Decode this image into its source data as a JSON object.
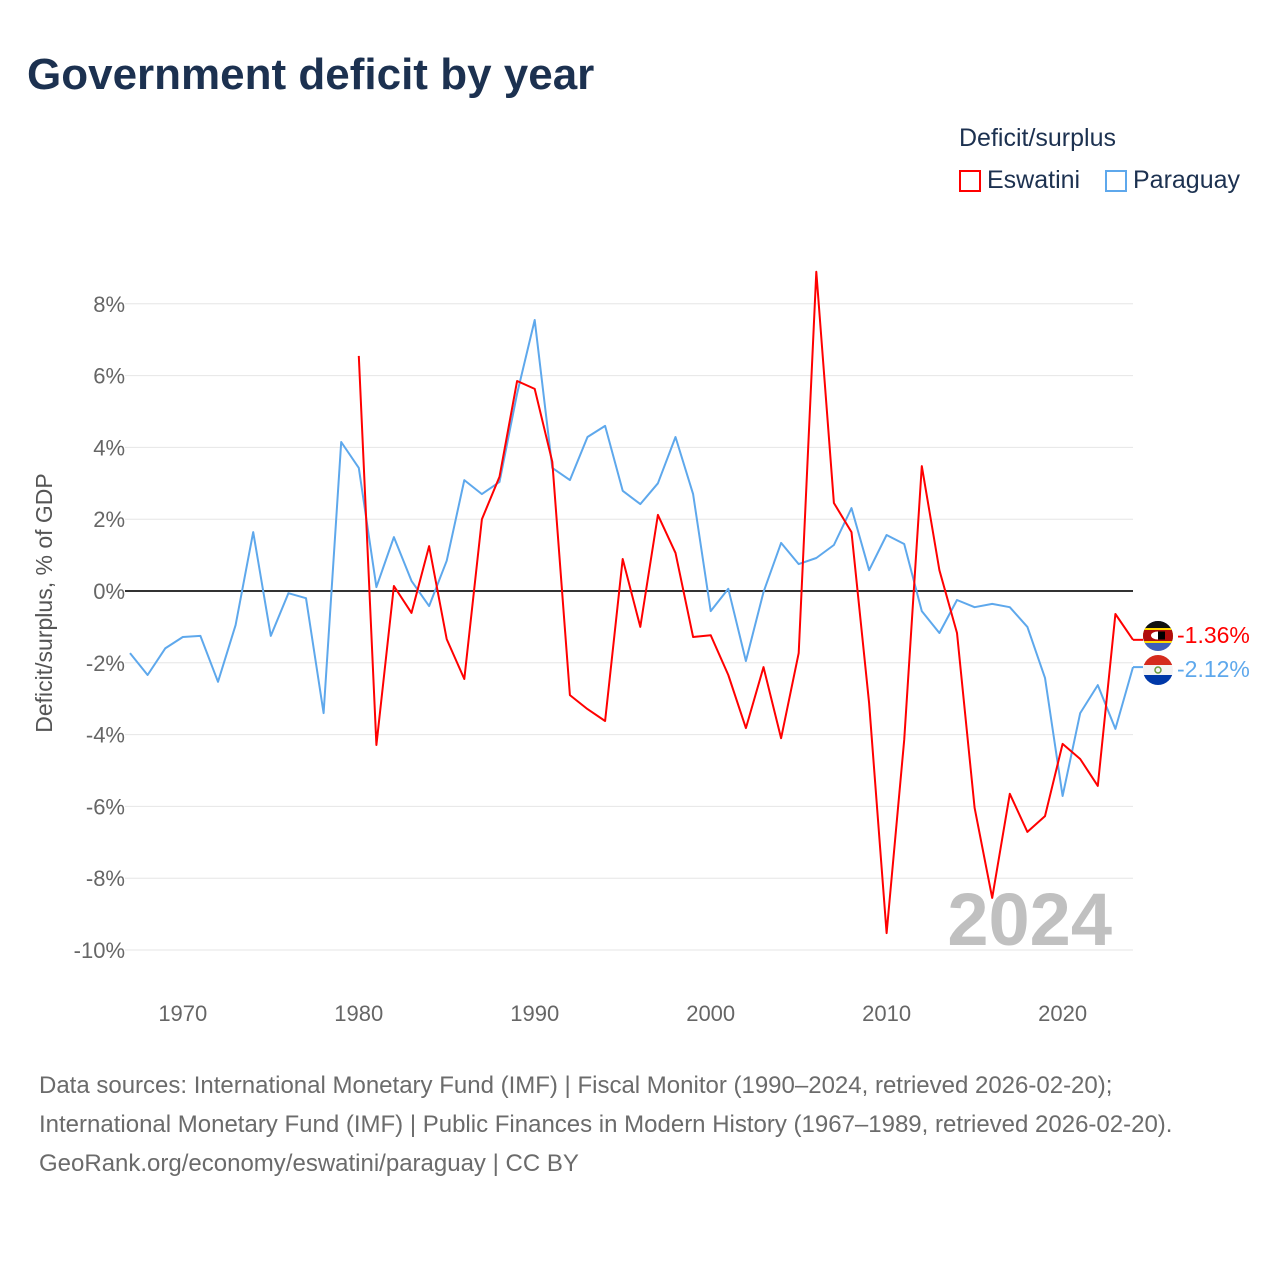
{
  "title": "Government deficit by year",
  "chart_data": {
    "type": "line",
    "title": "Government deficit by year",
    "xlabel": "",
    "ylabel": "Deficit/surplus, % of GDP",
    "legend_title": "Deficit/surplus",
    "legend_position": "top-right",
    "xlim": [
      1967,
      2024
    ],
    "ylim": [
      -10,
      8
    ],
    "grid": true,
    "x_ticks": [
      "1970",
      "1980",
      "1990",
      "2000",
      "2010",
      "2020"
    ],
    "y_ticks": [
      "8%",
      "6%",
      "4%",
      "2%",
      "0%",
      "-2%",
      "-4%",
      "-6%",
      "-8%",
      "-10%"
    ],
    "year_watermark": "2024",
    "series": [
      {
        "name": "Eswatini",
        "color": "#ff0000",
        "start_year": 1980,
        "end_label": "-1.36%",
        "values": [
          6.55,
          -4.29,
          0.14,
          -0.61,
          1.25,
          -1.34,
          -2.45,
          2.0,
          3.18,
          5.85,
          5.63,
          3.6,
          -2.9,
          -3.29,
          -3.62,
          0.89,
          -1.0,
          2.12,
          1.06,
          -1.28,
          -1.23,
          -2.34,
          -3.82,
          -2.12,
          -4.1,
          -1.73,
          8.89,
          2.45,
          1.64,
          -3.12,
          -9.53,
          -4.15,
          3.48,
          0.58,
          -1.17,
          -6.04,
          -8.55,
          -5.65,
          -6.71,
          -6.27,
          -4.26,
          -4.68,
          -5.43,
          -0.64,
          -1.36
        ]
      },
      {
        "name": "Paraguay",
        "color": "#5ea8ec",
        "start_year": 1967,
        "end_label": "-2.12%",
        "values": [
          -1.73,
          -2.34,
          -1.6,
          -1.28,
          -1.25,
          -2.53,
          -0.95,
          1.64,
          -1.25,
          -0.06,
          -0.2,
          -3.4,
          4.15,
          3.43,
          0.11,
          1.5,
          0.28,
          -0.42,
          0.84,
          3.09,
          2.7,
          3.04,
          5.5,
          7.55,
          3.43,
          3.09,
          4.29,
          4.6,
          2.79,
          2.42,
          3.0,
          4.29,
          2.7,
          -0.56,
          0.06,
          -1.95,
          -0.03,
          1.34,
          0.75,
          0.92,
          1.28,
          2.31,
          0.58,
          1.56,
          1.31,
          -0.56,
          -1.17,
          -0.25,
          -0.45,
          -0.36,
          -0.45,
          -1.0,
          -2.42,
          -5.71,
          -3.4,
          -2.62,
          -3.84,
          -2.12
        ]
      }
    ]
  },
  "sources": {
    "line1": "Data sources: International Monetary Fund (IMF) | Fiscal Monitor (1990–2024, retrieved 2026-02-20); International Monetary Fund (IMF) | Public Finances in Modern History (1967–1989, retrieved 2026-02-20).",
    "line2": "GeoRank.org/economy/eswatini/paraguay | CC BY"
  }
}
